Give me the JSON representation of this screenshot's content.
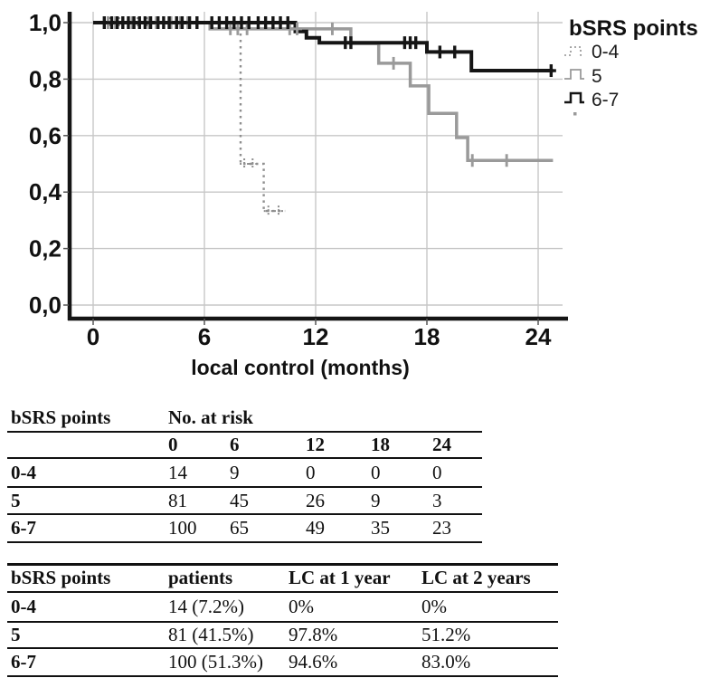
{
  "chart_data": {
    "type": "line",
    "subtype": "kaplan-meier-step",
    "title": "",
    "xlabel": "local control (months)",
    "ylabel": "",
    "legend_title": "bSRS points",
    "legend_position": "top-right",
    "grid": true,
    "xlim": [
      0,
      25.5
    ],
    "ylim": [
      0.0,
      1.0
    ],
    "x_ticks": [
      0,
      6,
      12,
      18,
      24
    ],
    "y_ticks": [
      {
        "value": 0.0,
        "label": "0,0"
      },
      {
        "value": 0.2,
        "label": "0,2"
      },
      {
        "value": 0.4,
        "label": "0,4"
      },
      {
        "value": 0.6,
        "label": "0,6"
      },
      {
        "value": 0.8,
        "label": "0,8"
      },
      {
        "value": 1.0,
        "label": "1,0"
      }
    ],
    "series": [
      {
        "name": "0-4",
        "style": "dotted",
        "color": "#8f8f8f",
        "width": 2.4,
        "steps": [
          [
            0,
            1
          ],
          [
            7.95,
            1
          ],
          [
            7.95,
            0.5
          ],
          [
            9.2,
            0.5
          ],
          [
            9.2,
            0.333
          ],
          [
            10.35,
            0.333
          ]
        ],
        "censors": [
          [
            0.9,
            1
          ],
          [
            1.4,
            1
          ],
          [
            1.9,
            1
          ],
          [
            2.4,
            1
          ],
          [
            2.9,
            1
          ],
          [
            3.4,
            1
          ],
          [
            8.15,
            0.5
          ],
          [
            8.6,
            0.5
          ],
          [
            9.45,
            0.333
          ],
          [
            10.0,
            0.333
          ]
        ]
      },
      {
        "name": "5",
        "style": "solid",
        "color": "#9a9a9a",
        "width": 3.5,
        "steps": [
          [
            0,
            1
          ],
          [
            6.3,
            1
          ],
          [
            6.3,
            0.978
          ],
          [
            13.9,
            0.978
          ],
          [
            13.9,
            0.926
          ],
          [
            15.4,
            0.926
          ],
          [
            15.4,
            0.856
          ],
          [
            17.1,
            0.856
          ],
          [
            17.1,
            0.776
          ],
          [
            18.1,
            0.776
          ],
          [
            18.1,
            0.679
          ],
          [
            19.6,
            0.679
          ],
          [
            19.6,
            0.593
          ],
          [
            20.2,
            0.593
          ],
          [
            20.2,
            0.512
          ],
          [
            24.8,
            0.512
          ]
        ],
        "censors": [
          [
            0.8,
            1
          ],
          [
            1.2,
            1
          ],
          [
            1.6,
            1
          ],
          [
            2.1,
            1
          ],
          [
            2.5,
            1
          ],
          [
            3.0,
            1
          ],
          [
            3.4,
            1
          ],
          [
            4.2,
            1
          ],
          [
            4.7,
            1
          ],
          [
            5.1,
            1
          ],
          [
            7.4,
            0.978
          ],
          [
            7.8,
            0.978
          ],
          [
            8.3,
            0.978
          ],
          [
            10.6,
            0.978
          ],
          [
            11.0,
            0.978
          ],
          [
            12.9,
            0.978
          ],
          [
            16.2,
            0.856
          ],
          [
            20.45,
            0.512
          ],
          [
            22.3,
            0.512
          ]
        ]
      },
      {
        "name": "6-7",
        "style": "solid",
        "color": "#151515",
        "width": 4,
        "steps": [
          [
            0,
            1
          ],
          [
            10.9,
            1
          ],
          [
            10.9,
            0.969
          ],
          [
            11.5,
            0.969
          ],
          [
            11.5,
            0.946
          ],
          [
            12.2,
            0.946
          ],
          [
            12.2,
            0.929
          ],
          [
            18.0,
            0.929
          ],
          [
            18.0,
            0.896
          ],
          [
            20.4,
            0.896
          ],
          [
            20.4,
            0.83
          ],
          [
            24.8,
            0.83
          ]
        ],
        "censors": [
          [
            0.6,
            1
          ],
          [
            1.0,
            1
          ],
          [
            1.3,
            1
          ],
          [
            1.6,
            1
          ],
          [
            1.9,
            1
          ],
          [
            2.2,
            1
          ],
          [
            2.5,
            1
          ],
          [
            2.8,
            1
          ],
          [
            3.1,
            1
          ],
          [
            3.5,
            1
          ],
          [
            3.8,
            1
          ],
          [
            4.1,
            1
          ],
          [
            4.5,
            1
          ],
          [
            4.8,
            1
          ],
          [
            5.2,
            1
          ],
          [
            5.6,
            1
          ],
          [
            6.4,
            1
          ],
          [
            6.8,
            1
          ],
          [
            7.2,
            1
          ],
          [
            7.6,
            1
          ],
          [
            8.0,
            1
          ],
          [
            8.4,
            1
          ],
          [
            8.9,
            1
          ],
          [
            9.3,
            1
          ],
          [
            9.7,
            1
          ],
          [
            10.1,
            1
          ],
          [
            10.5,
            1
          ],
          [
            13.6,
            0.929
          ],
          [
            13.9,
            0.929
          ],
          [
            16.8,
            0.929
          ],
          [
            17.1,
            0.929
          ],
          [
            17.4,
            0.929
          ],
          [
            18.7,
            0.896
          ],
          [
            19.5,
            0.896
          ],
          [
            24.7,
            0.83
          ]
        ]
      }
    ]
  },
  "risk_table": {
    "col1_header": "bSRS points",
    "col2_header": "No. at risk",
    "time_headers": [
      "0",
      "6",
      "12",
      "18",
      "24"
    ],
    "rows": [
      {
        "label": "0-4",
        "values": [
          "14",
          "9",
          "0",
          "0",
          "0"
        ]
      },
      {
        "label": "5",
        "values": [
          "81",
          "45",
          "26",
          "9",
          "3"
        ]
      },
      {
        "label": "6-7",
        "values": [
          "100",
          "65",
          "49",
          "35",
          "23"
        ]
      }
    ]
  },
  "outcome_table": {
    "headers": [
      "bSRS points",
      "patients",
      "LC at 1 year",
      "LC at 2 years"
    ],
    "rows": [
      {
        "label": "0-4",
        "patients": "14 (7.2%)",
        "lc1": "0%",
        "lc2": "0%"
      },
      {
        "label": "5",
        "patients": "81 (41.5%)",
        "lc1": "97.8%",
        "lc2": "51.2%"
      },
      {
        "label": "6-7",
        "patients": "100 (51.3%)",
        "lc1": "94.6%",
        "lc2": "83.0%"
      }
    ]
  }
}
